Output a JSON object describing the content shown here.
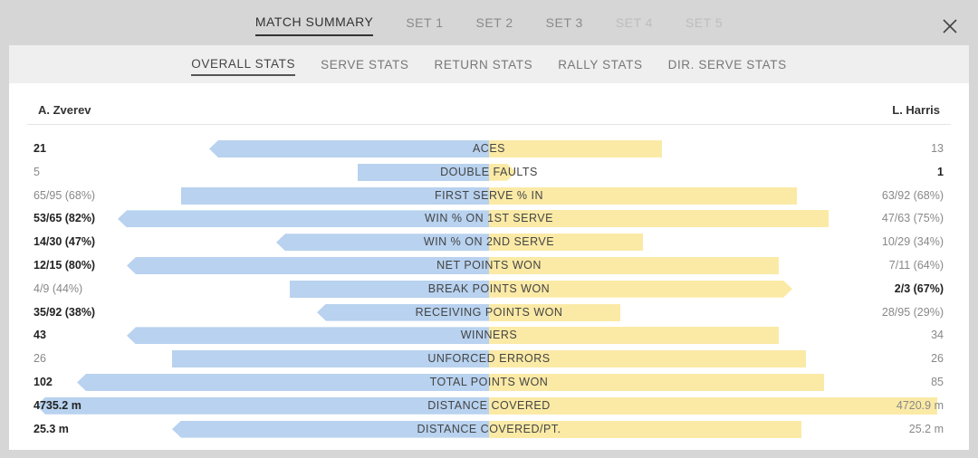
{
  "top_tabs": [
    {
      "label": "MATCH SUMMARY",
      "state": "active"
    },
    {
      "label": "SET 1",
      "state": "normal"
    },
    {
      "label": "SET 2",
      "state": "normal"
    },
    {
      "label": "SET 3",
      "state": "normal"
    },
    {
      "label": "SET 4",
      "state": "disabled"
    },
    {
      "label": "SET 5",
      "state": "disabled"
    }
  ],
  "sub_tabs": [
    {
      "label": "OVERALL STATS",
      "state": "active"
    },
    {
      "label": "SERVE STATS",
      "state": "normal"
    },
    {
      "label": "RETURN STATS",
      "state": "normal"
    },
    {
      "label": "RALLY STATS",
      "state": "normal"
    },
    {
      "label": "DIR. SERVE STATS",
      "state": "normal"
    }
  ],
  "players": {
    "left": "A. Zverev",
    "right": "L. Harris"
  },
  "colors": {
    "left_bar": "#b8d2ef",
    "right_bar": "#fbeaa6"
  },
  "stats": [
    {
      "label": "ACES",
      "left": "21",
      "right": "13",
      "left_share": 0.618,
      "right_share": 0.382,
      "leader": "left"
    },
    {
      "label": "DOUBLE FAULTS",
      "left": "5",
      "right": "1",
      "left_share": 0.29,
      "right_share": 0.06,
      "leader": "right"
    },
    {
      "label": "FIRST SERVE % IN",
      "left": "65/95 (68%)",
      "right": "63/92 (68%)",
      "left_share": 0.68,
      "right_share": 0.68,
      "leader": "none"
    },
    {
      "label": "WIN % ON 1ST SERVE",
      "left": "53/65 (82%)",
      "right": "47/63 (75%)",
      "left_share": 0.82,
      "right_share": 0.75,
      "leader": "left"
    },
    {
      "label": "WIN % ON 2ND SERVE",
      "left": "14/30 (47%)",
      "right": "10/29 (34%)",
      "left_share": 0.47,
      "right_share": 0.34,
      "leader": "left"
    },
    {
      "label": "NET POINTS WON",
      "left": "12/15 (80%)",
      "right": "7/11 (64%)",
      "left_share": 0.8,
      "right_share": 0.64,
      "leader": "left"
    },
    {
      "label": "BREAK POINTS WON",
      "left": "4/9 (44%)",
      "right": "2/3 (67%)",
      "left_share": 0.44,
      "right_share": 0.67,
      "leader": "right"
    },
    {
      "label": "RECEIVING POINTS WON",
      "left": "35/92 (38%)",
      "right": "28/95 (29%)",
      "left_share": 0.38,
      "right_share": 0.29,
      "leader": "left"
    },
    {
      "label": "WINNERS",
      "left": "43",
      "right": "34",
      "left_share": 0.8,
      "right_share": 0.64,
      "leader": "left"
    },
    {
      "label": "UNFORCED ERRORS",
      "left": "26",
      "right": "26",
      "left_share": 0.7,
      "right_share": 0.7,
      "leader": "none"
    },
    {
      "label": "TOTAL POINTS WON",
      "left": "102",
      "right": "85",
      "left_share": 0.91,
      "right_share": 0.74,
      "leader": "left"
    },
    {
      "label": "DISTANCE COVERED",
      "left": "4735.2 m",
      "right": "4720.9 m",
      "left_share": 1.0,
      "right_share": 0.99,
      "leader": "left"
    },
    {
      "label": "DISTANCE COVERED/PT.",
      "left": "25.3 m",
      "right": "25.2 m",
      "left_share": 0.7,
      "right_share": 0.69,
      "leader": "left"
    }
  ]
}
